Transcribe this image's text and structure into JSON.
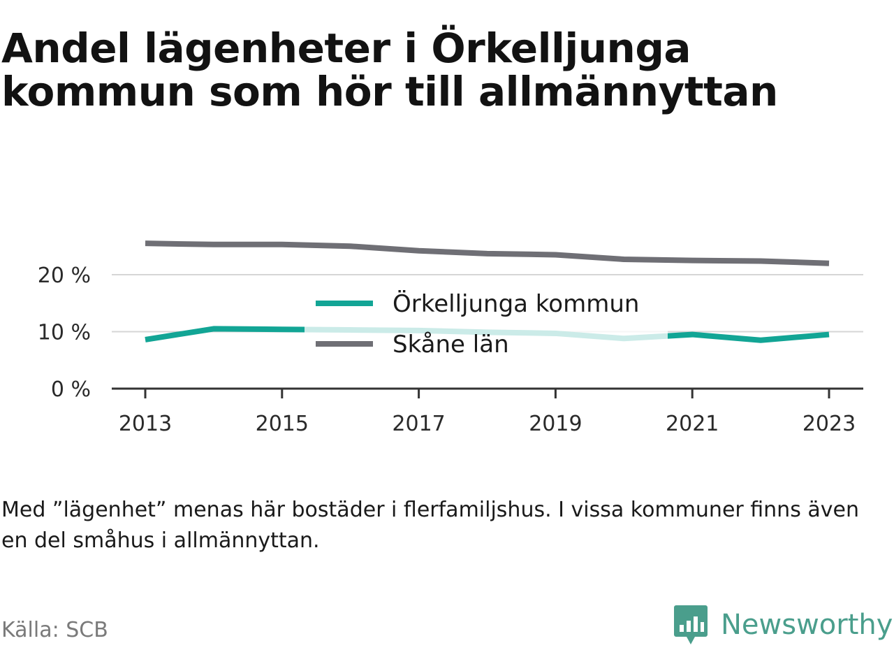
{
  "title": "Andel lägenheter i Örkelljunga kommun som hör till allmännyttan",
  "note": "Med ”lägenhet” menas här bostäder i flerfamiljshus. I vissa kommuner finns även en del småhus i allmännyttan.",
  "source": "Källa: SCB",
  "brand": {
    "name": "Newsworthy",
    "logo_icon": "bar-chart-speech-bubble-icon",
    "color": "#4a9e8c"
  },
  "chart_data": {
    "type": "line",
    "x": [
      2013,
      2014,
      2015,
      2016,
      2017,
      2018,
      2019,
      2020,
      2021,
      2022,
      2023
    ],
    "x_ticks": [
      "2013",
      "2015",
      "2017",
      "2019",
      "2021",
      "2023"
    ],
    "y_ticks": [
      "0 %",
      "10 %",
      "20 %"
    ],
    "ylim": [
      0,
      27
    ],
    "grid": true,
    "legend_placement": "center",
    "series": [
      {
        "name": "Örkelljunga kommun",
        "color": "#12a595",
        "values": [
          8.6,
          10.5,
          10.4,
          10.3,
          10.2,
          9.9,
          9.7,
          8.8,
          9.5,
          8.5,
          9.5
        ]
      },
      {
        "name": "Skåne län",
        "color": "#6f6f75",
        "values": [
          25.5,
          25.3,
          25.3,
          25.0,
          24.2,
          23.7,
          23.5,
          22.7,
          22.5,
          22.4,
          22.0
        ]
      }
    ]
  }
}
